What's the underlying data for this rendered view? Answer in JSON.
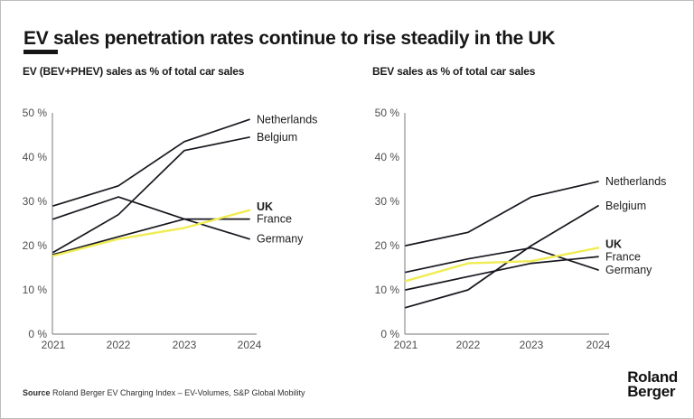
{
  "page": {
    "title": "EV sales penetration rates continue to rise steadily in the UK",
    "source_label": "Source",
    "source_text": " Roland Berger EV Charging Index – EV-Volumes, S&P Global Mobility",
    "logo": {
      "line1": "Roland",
      "line2": "Berger"
    }
  },
  "colors": {
    "text_primary": "#161616",
    "tick_text": "#4d4d4d",
    "axis": "#8f8f8f",
    "line_dark": "#16161e",
    "line_highlight": "#f0ec53"
  },
  "chart_data": [
    {
      "type": "line",
      "title": "EV (BEV+PHEV) sales as % of total car sales",
      "categories": [
        "2021",
        "2022",
        "2023",
        "2024"
      ],
      "xlabel": "",
      "ylabel": "",
      "ylim": [
        0,
        50
      ],
      "yticks": [
        0,
        10,
        20,
        30,
        40,
        50
      ],
      "ytick_suffix": " %",
      "grid": false,
      "legend_position": "line-end-labels",
      "series": [
        {
          "name": "Netherlands",
          "values": [
            29,
            33.5,
            43.5,
            48.5
          ],
          "highlight": false
        },
        {
          "name": "Belgium",
          "values": [
            18.5,
            27,
            41.5,
            44.5
          ],
          "highlight": false
        },
        {
          "name": "UK",
          "values": [
            17.7,
            21.5,
            24,
            28
          ],
          "highlight": true
        },
        {
          "name": "France",
          "values": [
            18,
            22,
            26,
            26
          ],
          "highlight": false
        },
        {
          "name": "Germany",
          "values": [
            26,
            31,
            26,
            21.5
          ],
          "highlight": false
        }
      ]
    },
    {
      "type": "line",
      "title": "BEV sales as % of total car sales",
      "categories": [
        "2021",
        "2022",
        "2023",
        "2024"
      ],
      "xlabel": "",
      "ylabel": "",
      "ylim": [
        0,
        50
      ],
      "yticks": [
        0,
        10,
        20,
        30,
        40,
        50
      ],
      "ytick_suffix": " %",
      "grid": false,
      "legend_position": "line-end-labels",
      "series": [
        {
          "name": "Netherlands",
          "values": [
            20,
            23,
            31,
            34.5
          ],
          "highlight": false
        },
        {
          "name": "Belgium",
          "values": [
            6,
            10,
            20,
            29
          ],
          "highlight": false
        },
        {
          "name": "UK",
          "values": [
            12,
            16,
            16.5,
            19.5
          ],
          "highlight": true
        },
        {
          "name": "France",
          "values": [
            10,
            13,
            16,
            17.5
          ],
          "highlight": false
        },
        {
          "name": "Germany",
          "values": [
            14,
            17,
            19.5,
            14.5
          ],
          "highlight": false
        }
      ]
    }
  ]
}
